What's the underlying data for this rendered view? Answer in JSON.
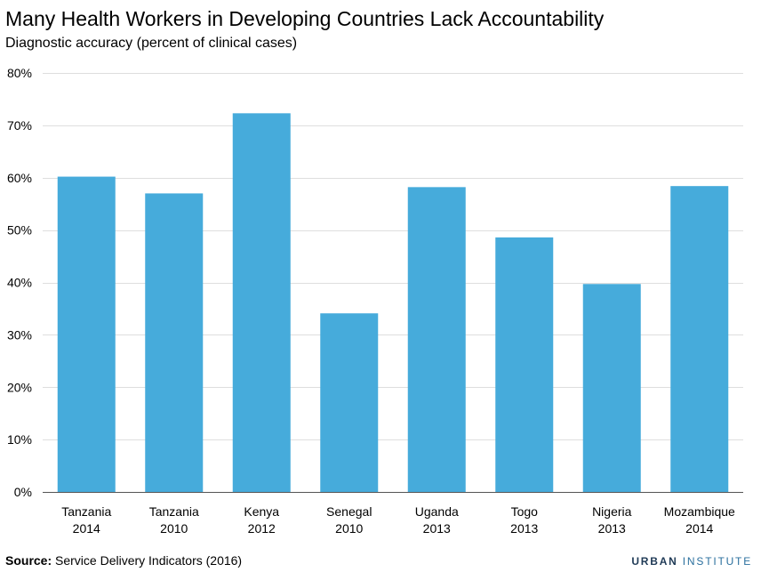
{
  "colors": {
    "bar": "#46abdb",
    "grid": "#dedede",
    "axis": "#555555"
  },
  "source": {
    "label": "Source:",
    "text": "Service Delivery Indicators (2016)"
  },
  "brand": {
    "primary": "URBAN",
    "secondary": "INSTITUTE"
  },
  "chart_data": {
    "type": "bar",
    "title": "Many Health Workers in Developing Countries Lack Accountability",
    "subtitle": "Diagnostic accuracy (percent of clinical cases)",
    "xlabel": "",
    "ylabel": "",
    "categories": [
      [
        "Tanzania",
        "2014"
      ],
      [
        "Tanzania",
        "2010"
      ],
      [
        "Kenya",
        "2012"
      ],
      [
        "Senegal",
        "2010"
      ],
      [
        "Uganda",
        "2013"
      ],
      [
        "Togo",
        "2013"
      ],
      [
        "Nigeria",
        "2013"
      ],
      [
        "Mozambique",
        "2014"
      ]
    ],
    "values": [
      60.2,
      57.0,
      72.3,
      34.1,
      58.2,
      48.6,
      39.7,
      58.4
    ],
    "ylim": [
      0,
      80
    ],
    "yticks": [
      0,
      10,
      20,
      30,
      40,
      50,
      60,
      70,
      80
    ],
    "ytick_labels": [
      "0%",
      "10%",
      "20%",
      "30%",
      "40%",
      "50%",
      "60%",
      "70%",
      "80%"
    ],
    "grid": true,
    "legend": "none"
  }
}
